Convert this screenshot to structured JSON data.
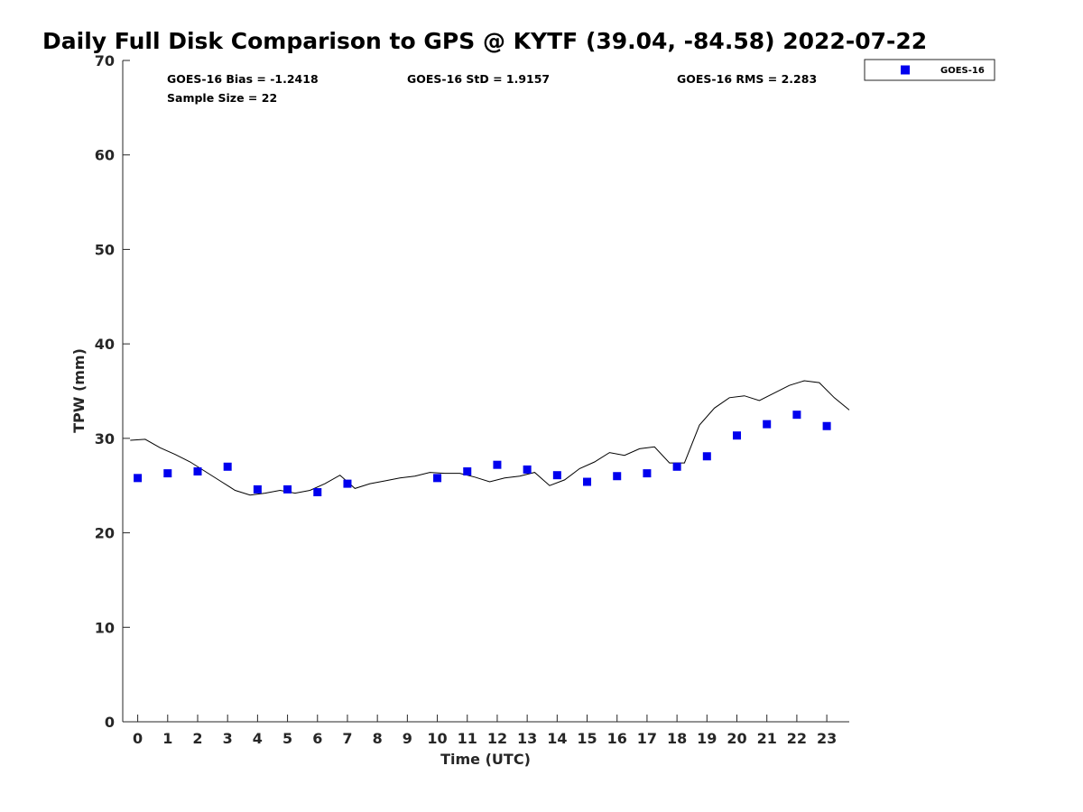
{
  "chart_data": {
    "type": "scatter",
    "title": "Daily Full Disk Comparison to GPS @ KYTF (39.04, -84.58) 2022-07-22",
    "xlabel": "Time (UTC)",
    "ylabel": "TPW (mm)",
    "xlim": [
      -0.5,
      23.75
    ],
    "ylim": [
      0,
      70
    ],
    "x_ticks": [
      "0",
      "1",
      "2",
      "3",
      "4",
      "5",
      "6",
      "7",
      "8",
      "9",
      "10",
      "11",
      "12",
      "13",
      "14",
      "15",
      "16",
      "17",
      "18",
      "19",
      "20",
      "21",
      "22",
      "23"
    ],
    "y_ticks": [
      "0",
      "10",
      "20",
      "30",
      "40",
      "50",
      "60",
      "70"
    ],
    "grid": false,
    "legend_position": "top-right",
    "stats": {
      "bias": "GOES-16 Bias = -1.2418",
      "std": "GOES-16 StD = 1.9157",
      "rms": "GOES-16 RMS = 2.283",
      "sample": "Sample Size = 22"
    },
    "series": [
      {
        "name": "GOES-16",
        "kind": "scatter",
        "color": "#0000ee",
        "points": [
          [
            0,
            25.8
          ],
          [
            1,
            26.3
          ],
          [
            2,
            26.5
          ],
          [
            3,
            27.0
          ],
          [
            4,
            24.6
          ],
          [
            5,
            24.6
          ],
          [
            6,
            24.3
          ],
          [
            7,
            25.2
          ],
          [
            10,
            25.8
          ],
          [
            11,
            26.5
          ],
          [
            12,
            27.2
          ],
          [
            13,
            26.7
          ],
          [
            14,
            26.1
          ],
          [
            15,
            25.4
          ],
          [
            16,
            26.0
          ],
          [
            17,
            26.3
          ],
          [
            18,
            27.0
          ],
          [
            19,
            28.1
          ],
          [
            20,
            30.3
          ],
          [
            21,
            31.5
          ],
          [
            22,
            32.5
          ],
          [
            23,
            31.3
          ]
        ]
      },
      {
        "kind": "line",
        "color": "#000000",
        "points": [
          [
            -0.25,
            29.8
          ],
          [
            0.25,
            29.9
          ],
          [
            0.75,
            29.0
          ],
          [
            1.25,
            28.3
          ],
          [
            1.75,
            27.5
          ],
          [
            2.25,
            26.5
          ],
          [
            2.75,
            25.5
          ],
          [
            3.25,
            24.5
          ],
          [
            3.75,
            24.0
          ],
          [
            4.25,
            24.2
          ],
          [
            4.75,
            24.5
          ],
          [
            5.25,
            24.2
          ],
          [
            5.75,
            24.5
          ],
          [
            6.25,
            25.2
          ],
          [
            6.75,
            26.1
          ],
          [
            7.25,
            24.7
          ],
          [
            7.75,
            25.2
          ],
          [
            8.25,
            25.5
          ],
          [
            8.75,
            25.8
          ],
          [
            9.25,
            26.0
          ],
          [
            9.75,
            26.4
          ],
          [
            10.25,
            26.3
          ],
          [
            10.75,
            26.3
          ],
          [
            11.25,
            25.9
          ],
          [
            11.75,
            25.4
          ],
          [
            12.25,
            25.8
          ],
          [
            12.75,
            26.0
          ],
          [
            13.25,
            26.4
          ],
          [
            13.75,
            25.0
          ],
          [
            14.25,
            25.6
          ],
          [
            14.75,
            26.8
          ],
          [
            15.25,
            27.5
          ],
          [
            15.75,
            28.5
          ],
          [
            16.25,
            28.2
          ],
          [
            16.75,
            28.9
          ],
          [
            17.25,
            29.1
          ],
          [
            17.75,
            27.4
          ],
          [
            18.25,
            27.4
          ],
          [
            18.75,
            31.4
          ],
          [
            19.25,
            33.2
          ],
          [
            19.75,
            34.3
          ],
          [
            20.25,
            34.5
          ],
          [
            20.75,
            34.0
          ],
          [
            21.25,
            34.8
          ],
          [
            21.75,
            35.6
          ],
          [
            22.25,
            36.1
          ],
          [
            22.75,
            35.9
          ],
          [
            23.25,
            34.3
          ],
          [
            23.75,
            33.0
          ]
        ]
      }
    ]
  }
}
